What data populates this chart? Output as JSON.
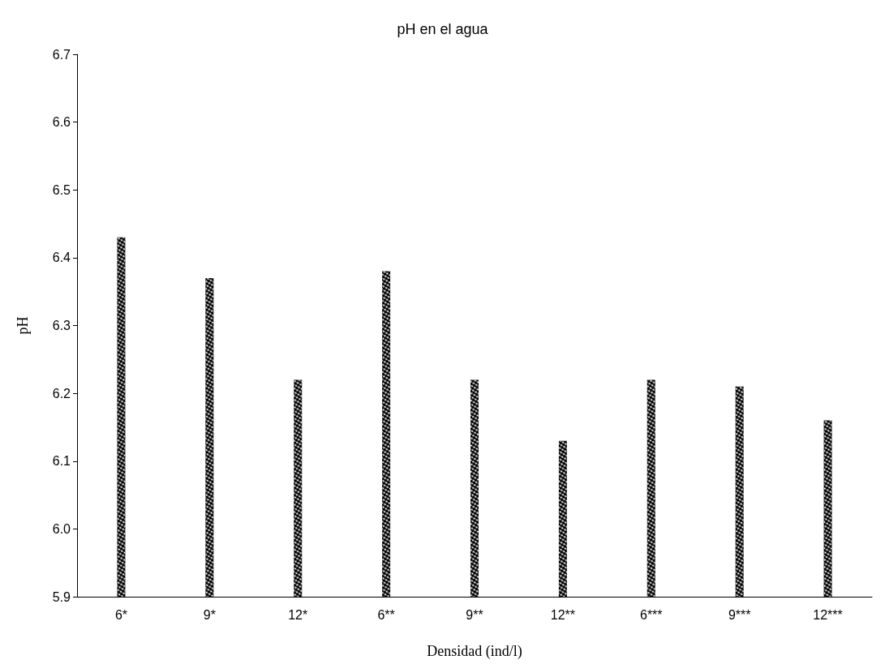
{
  "chart_data": {
    "type": "bar",
    "title": "pH en el agua",
    "xlabel": "Densidad (ind/l)",
    "ylabel": "pH",
    "categories": [
      "6*",
      "9*",
      "12*",
      "6**",
      "9**",
      "12**",
      "6***",
      "9***",
      "12***"
    ],
    "values": [
      6.43,
      6.37,
      6.22,
      6.38,
      6.22,
      6.13,
      6.22,
      6.21,
      6.16
    ],
    "color": "#000000",
    "ylim": [
      5.9,
      6.7
    ],
    "yticks": [
      5.9,
      {
        "value": 6,
        "label": "6.0"
      },
      6.1,
      6.2,
      6.3,
      6.4,
      6.5,
      6.6,
      6.7
    ],
    "grid": false
  }
}
